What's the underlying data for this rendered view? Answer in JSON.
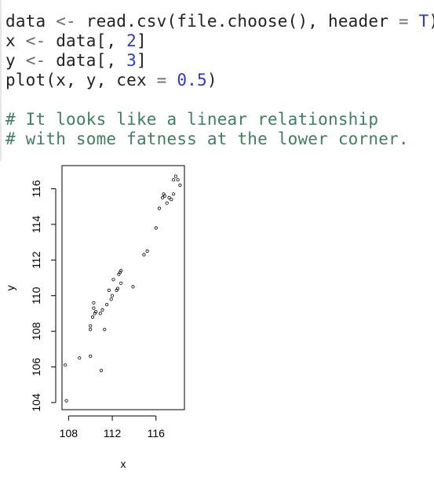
{
  "code": {
    "lines": [
      {
        "parts": [
          {
            "t": "data "
          },
          {
            "t": "<-",
            "c": "op"
          },
          {
            "t": " read.csv(file.choose(), header "
          },
          {
            "t": "=",
            "c": "op"
          },
          {
            "t": " "
          },
          {
            "t": "T",
            "c": "lit"
          },
          {
            "t": ")"
          }
        ]
      },
      {
        "parts": [
          {
            "t": "x "
          },
          {
            "t": "<-",
            "c": "op"
          },
          {
            "t": " data[, "
          },
          {
            "t": "2",
            "c": "num"
          },
          {
            "t": "]"
          }
        ]
      },
      {
        "parts": [
          {
            "t": "y "
          },
          {
            "t": "<-",
            "c": "op"
          },
          {
            "t": " data[, "
          },
          {
            "t": "3",
            "c": "num"
          },
          {
            "t": "]"
          }
        ]
      },
      {
        "parts": [
          {
            "t": "plot(x, y, cex "
          },
          {
            "t": "=",
            "c": "op"
          },
          {
            "t": " "
          },
          {
            "t": "0.5",
            "c": "num"
          },
          {
            "t": ")"
          }
        ]
      }
    ],
    "comments": [
      "# It looks like a linear relationship",
      "# with some fatness at the lower corner."
    ]
  },
  "chart_data": {
    "type": "scatter",
    "title": "",
    "xlabel": "x",
    "ylabel": "y",
    "xlim": [
      107.4,
      118.6
    ],
    "ylim": [
      103.6,
      117.3
    ],
    "xticks": [
      108,
      112,
      116
    ],
    "yticks": [
      104,
      106,
      108,
      110,
      112,
      114,
      116
    ],
    "grid": false,
    "points": [
      [
        107.7,
        106.1
      ],
      [
        107.8,
        104.1
      ],
      [
        109.0,
        106.5
      ],
      [
        110.0,
        106.6
      ],
      [
        110.0,
        108.1
      ],
      [
        110.0,
        108.3
      ],
      [
        110.2,
        108.8
      ],
      [
        110.3,
        109.3
      ],
      [
        110.3,
        109.6
      ],
      [
        110.4,
        109.0
      ],
      [
        110.5,
        109.1
      ],
      [
        110.9,
        109.0
      ],
      [
        111.0,
        105.8
      ],
      [
        111.1,
        109.2
      ],
      [
        111.3,
        108.1
      ],
      [
        111.5,
        109.5
      ],
      [
        111.7,
        110.3
      ],
      [
        111.9,
        109.8
      ],
      [
        112.0,
        110.0
      ],
      [
        112.1,
        110.9
      ],
      [
        112.4,
        110.3
      ],
      [
        112.5,
        110.4
      ],
      [
        112.6,
        111.2
      ],
      [
        112.7,
        111.3
      ],
      [
        112.8,
        111.4
      ],
      [
        112.8,
        110.7
      ],
      [
        113.9,
        110.5
      ],
      [
        114.9,
        112.3
      ],
      [
        115.2,
        112.5
      ],
      [
        116.0,
        113.8
      ],
      [
        116.3,
        114.9
      ],
      [
        116.6,
        115.5
      ],
      [
        116.8,
        115.6
      ],
      [
        117.0,
        115.2
      ],
      [
        117.2,
        115.5
      ],
      [
        117.4,
        115.4
      ],
      [
        117.6,
        116.5
      ],
      [
        117.8,
        116.7
      ],
      [
        118.0,
        116.5
      ],
      [
        118.2,
        116.2
      ],
      [
        117.6,
        115.7
      ],
      [
        116.7,
        115.7
      ]
    ]
  }
}
